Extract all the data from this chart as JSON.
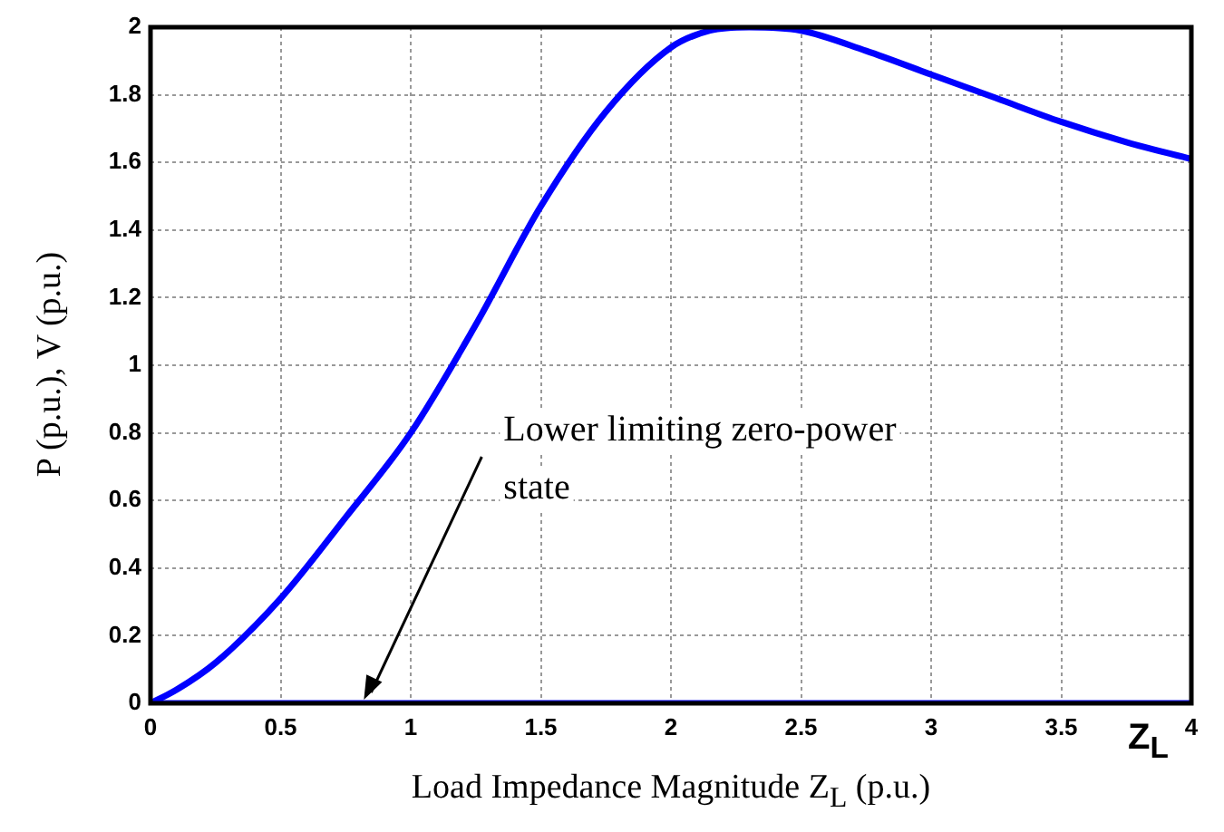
{
  "chart_data": {
    "type": "line",
    "xlabel": "Load Impedance Magnitude Z$_{L}$ (p.u.)",
    "ylabel": "P (p.u.), V (p.u.)",
    "annotations": [
      {
        "text": "Lower limiting zero-power state",
        "x": 0.82,
        "y": 0
      },
      "Z$_{L}$"
    ],
    "xlim": [
      0,
      4
    ],
    "xticks": [
      0,
      0.5,
      1,
      1.5,
      2,
      2.5,
      3,
      3.5,
      4
    ],
    "ylim": [
      0,
      2
    ],
    "yticks": [
      0,
      0.2,
      0.4,
      0.6,
      0.8,
      1,
      1.2,
      1.4,
      1.6,
      1.8,
      2
    ],
    "grid": true,
    "marker": "none",
    "line_style": "solid",
    "series": [
      {
        "color": "#0000ff",
        "x": [
          0,
          0.1,
          0.25,
          0.5,
          0.75,
          1,
          1.25,
          1.5,
          1.75,
          2,
          2.15,
          2.3,
          2.5,
          2.75,
          3,
          3.25,
          3.5,
          3.75,
          4
        ],
        "values": [
          0,
          0.04,
          0.12,
          0.31,
          0.55,
          0.8,
          1.12,
          1.47,
          1.75,
          1.94,
          1.99,
          2,
          1.99,
          1.93,
          1.86,
          1.79,
          1.72,
          1.66,
          1.61
        ]
      },
      {
        "color": "#0000ff",
        "x": [
          0,
          4
        ],
        "values": [
          0,
          0
        ]
      }
    ]
  }
}
